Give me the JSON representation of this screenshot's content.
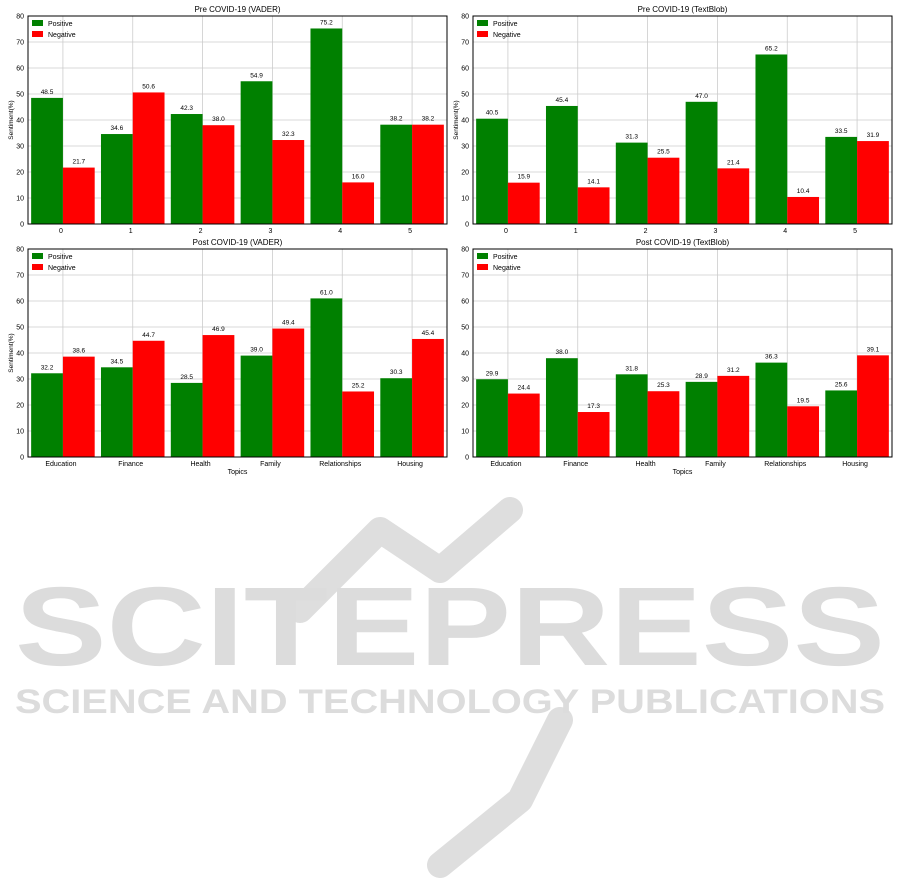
{
  "colors": {
    "positive": "#008000",
    "negative": "#ff0000",
    "grid": "#cccccc",
    "watermark": "#dcdcdc"
  },
  "watermark": {
    "line1": "SCITEPRESS",
    "line2": "SCIENCE AND TECHNOLOGY PUBLICATIONS"
  },
  "chart_data": [
    {
      "type": "bar",
      "title": "Pre COVID-19 (VADER)",
      "xlabel": "",
      "ylabel": "Sentiment(%)",
      "ylim": [
        0,
        80
      ],
      "yticks": [
        "0",
        "10",
        "20",
        "30",
        "40",
        "50",
        "60",
        "70",
        "80"
      ],
      "grid": true,
      "legend": "top-left",
      "categories": [
        "0",
        "1",
        "2",
        "3",
        "4",
        "5"
      ],
      "series": [
        {
          "name": "Positive",
          "values": [
            48.5,
            34.6,
            42.3,
            54.9,
            75.2,
            38.2
          ],
          "labels": [
            "48.5",
            "34.6",
            "42.3",
            "54.9",
            "75.2",
            "38.2"
          ]
        },
        {
          "name": "Negative",
          "values": [
            21.7,
            50.6,
            38.0,
            32.3,
            16.0,
            38.2
          ],
          "labels": [
            "21.7",
            "50.6",
            "38.0",
            "32.3",
            "16.0",
            "38.2"
          ]
        }
      ]
    },
    {
      "type": "bar",
      "title": "Pre COVID-19 (TextBlob)",
      "xlabel": "",
      "ylabel": "Sentiment(%)",
      "ylim": [
        0,
        80
      ],
      "yticks": [
        "0",
        "10",
        "20",
        "30",
        "40",
        "50",
        "60",
        "70",
        "80"
      ],
      "grid": true,
      "legend": "top-left",
      "categories": [
        "0",
        "1",
        "2",
        "3",
        "4",
        "5"
      ],
      "series": [
        {
          "name": "Positive",
          "values": [
            40.5,
            45.4,
            31.3,
            47.0,
            65.2,
            33.5
          ],
          "labels": [
            "40.5",
            "45.4",
            "31.3",
            "47.0",
            "65.2",
            "33.5"
          ]
        },
        {
          "name": "Negative",
          "values": [
            15.9,
            14.1,
            25.5,
            21.4,
            10.4,
            31.9
          ],
          "labels": [
            "15.9",
            "14.1",
            "25.5",
            "21.4",
            "10.4",
            "31.9"
          ]
        }
      ]
    },
    {
      "type": "bar",
      "title": "Post COVID-19 (VADER)",
      "xlabel": "Topics",
      "ylabel": "Sentiment(%)",
      "ylim": [
        0,
        80
      ],
      "yticks": [
        "0",
        "10",
        "20",
        "30",
        "40",
        "50",
        "60",
        "70",
        "80"
      ],
      "grid": true,
      "legend": "top-left",
      "categories": [
        "Education",
        "Finance",
        "Health",
        "Family",
        "Relationships",
        "Housing"
      ],
      "series": [
        {
          "name": "Positive",
          "values": [
            32.2,
            34.5,
            28.5,
            39.0,
            61.0,
            30.3
          ],
          "labels": [
            "32.2",
            "34.5",
            "28.5",
            "39.0",
            "61.0",
            "30.3"
          ]
        },
        {
          "name": "Negative",
          "values": [
            38.6,
            44.7,
            46.9,
            49.4,
            25.2,
            45.4
          ],
          "labels": [
            "38.6",
            "44.7",
            "46.9",
            "49.4",
            "25.2",
            "45.4"
          ]
        }
      ]
    },
    {
      "type": "bar",
      "title": "Post COVID-19 (TextBlob)",
      "xlabel": "Topics",
      "ylabel": "",
      "ylim": [
        0,
        80
      ],
      "yticks": [
        "0",
        "10",
        "20",
        "30",
        "40",
        "50",
        "60",
        "70",
        "80"
      ],
      "grid": true,
      "legend": "top-left",
      "categories": [
        "Education",
        "Finance",
        "Health",
        "Family",
        "Relationships",
        "Housing"
      ],
      "series": [
        {
          "name": "Positive",
          "values": [
            29.9,
            38.0,
            31.8,
            28.9,
            36.3,
            25.6
          ],
          "labels": [
            "29.9",
            "38.0",
            "31.8",
            "28.9",
            "36.3",
            "25.6"
          ]
        },
        {
          "name": "Negative",
          "values": [
            24.4,
            17.3,
            25.3,
            31.2,
            19.5,
            39.1
          ],
          "labels": [
            "24.4",
            "17.3",
            "25.3",
            "31.2",
            "19.5",
            "39.1"
          ]
        }
      ]
    }
  ]
}
